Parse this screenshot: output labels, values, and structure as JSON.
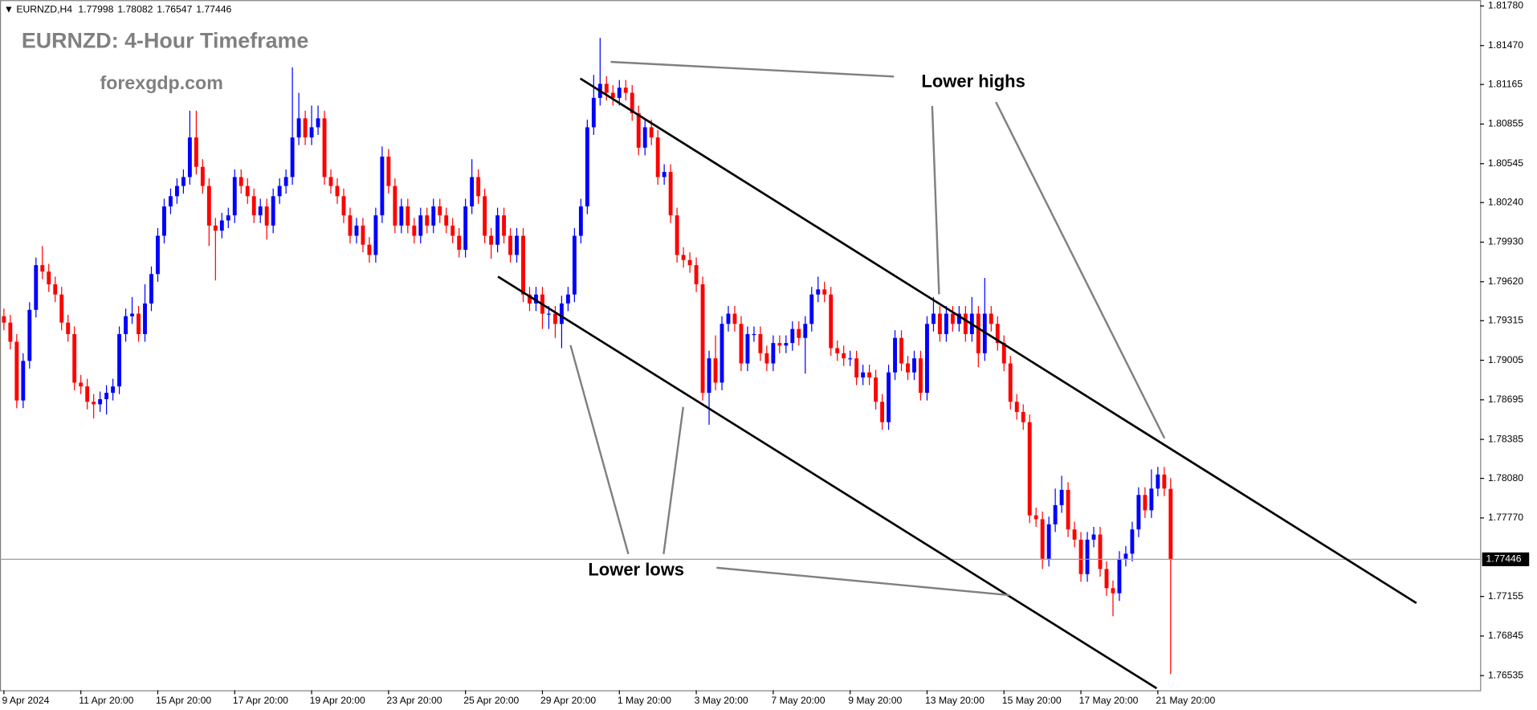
{
  "chart_data": {
    "type": "candlestick",
    "symbol": "EURNZD,H4",
    "title": "EURNZD: 4-Hour Timeframe",
    "subtitle": "forexgdp.com",
    "annotations": [
      "Lower highs",
      "Lower lows"
    ],
    "categories": [
      "9 Apr 2024",
      null,
      null,
      null,
      null,
      null,
      null,
      null,
      null,
      null,
      null,
      null,
      "11 Apr 20:00",
      null,
      null,
      null,
      null,
      null,
      null,
      null,
      null,
      null,
      null,
      null,
      "15 Apr 20:00",
      null,
      null,
      null,
      null,
      null,
      null,
      null,
      null,
      null,
      null,
      null,
      "17 Apr 20:00",
      null,
      null,
      null,
      null,
      null,
      null,
      null,
      null,
      null,
      null,
      null,
      "19 Apr 20:00",
      null,
      null,
      null,
      null,
      null,
      null,
      null,
      null,
      null,
      null,
      null,
      "23 Apr 20:00",
      null,
      null,
      null,
      null,
      null,
      null,
      null,
      null,
      null,
      null,
      null,
      "25 Apr 20:00",
      null,
      null,
      null,
      null,
      null,
      null,
      null,
      null,
      null,
      null,
      null,
      "29 Apr 20:00",
      null,
      null,
      null,
      null,
      null,
      null,
      null,
      null,
      null,
      null,
      null,
      "1 May 20:00",
      null,
      null,
      null,
      null,
      null,
      null,
      null,
      null,
      null,
      null,
      null,
      "3 May 20:00",
      null,
      null,
      null,
      null,
      null,
      null,
      null,
      null,
      null,
      null,
      null,
      "7 May 20:00",
      null,
      null,
      null,
      null,
      null,
      null,
      null,
      null,
      null,
      null,
      null,
      "9 May 20:00",
      null,
      null,
      null,
      null,
      null,
      null,
      null,
      null,
      null,
      null,
      null,
      "13 May 20:00",
      null,
      null,
      null,
      null,
      null,
      null,
      null,
      null,
      null,
      null,
      null,
      "15 May 20:00",
      null,
      null,
      null,
      null,
      null,
      null,
      null,
      null,
      null,
      null,
      null,
      "17 May 20:00",
      null,
      null,
      null,
      null,
      null,
      null,
      null,
      null,
      null,
      null,
      null,
      "21 May 20:00",
      null,
      null
    ],
    "open": [
      1.7935,
      1.793,
      1.7915,
      1.7869,
      1.79,
      1.794,
      1.7975,
      1.797,
      1.796,
      1.7952,
      1.793,
      1.7921,
      1.7883,
      1.788,
      1.7868,
      1.7866,
      1.787,
      1.7875,
      1.788,
      1.7921,
      1.7935,
      1.7937,
      1.7921,
      1.7945,
      1.7968,
      1.7998,
      1.8021,
      1.8029,
      1.8037,
      1.8044,
      1.8075,
      1.8052,
      1.8037,
      1.8006,
      1.8002,
      1.801,
      1.8014,
      1.8044,
      1.8037,
      1.8029,
      1.8014,
      1.8021,
      1.8006,
      1.8029,
      1.8037,
      1.8044,
      1.8075,
      1.809,
      1.8075,
      1.8083,
      1.809,
      1.8044,
      1.8037,
      1.8029,
      1.8014,
      1.7998,
      1.8006,
      1.7991,
      1.7983,
      1.8014,
      1.806,
      1.8037,
      1.8006,
      1.8021,
      1.8006,
      1.7998,
      1.8014,
      1.8006,
      1.8021,
      1.8014,
      1.8006,
      1.7998,
      1.7987,
      1.8021,
      1.8044,
      1.8029,
      1.7998,
      1.7991,
      1.8014,
      1.7998,
      1.7983,
      1.7998,
      1.7952,
      1.7945,
      1.7952,
      1.7937,
      1.7937,
      1.7929,
      1.7945,
      1.7952,
      1.7998,
      1.8021,
      1.8083,
      1.8106,
      1.8117,
      1.811,
      1.8106,
      1.8114,
      1.811,
      1.8094,
      1.8067,
      1.8083,
      1.8075,
      1.8044,
      1.8048,
      1.8014,
      1.7983,
      1.7979,
      1.7975,
      1.796,
      1.7875,
      1.7902,
      1.7883,
      1.7929,
      1.7937,
      1.7929,
      1.7898,
      1.7921,
      1.7921,
      1.7906,
      1.7898,
      1.7914,
      1.7912,
      1.7914,
      1.7925,
      1.7918,
      1.7929,
      1.7952,
      1.7956,
      1.7952,
      1.791,
      1.7906,
      1.7902,
      1.7902,
      1.7887,
      1.7891,
      1.7887,
      1.7868,
      1.7852,
      1.7891,
      1.7918,
      1.7898,
      1.7891,
      1.7902,
      1.7875,
      1.7929,
      1.7937,
      1.7921,
      1.7937,
      1.7929,
      1.7937,
      1.7921,
      1.7937,
      1.7906,
      1.7937,
      1.7929,
      1.7914,
      1.7898,
      1.7868,
      1.786,
      1.7852,
      1.7779,
      1.7776,
      1.7745,
      1.7772,
      1.7787,
      1.7799,
      1.7768,
      1.776,
      1.7733,
      1.776,
      1.7764,
      1.7737,
      1.7722,
      1.7718,
      1.7745,
      1.7749,
      1.7768,
      1.7795,
      1.7783,
      1.78,
      1.7811,
      1.77998
    ],
    "high": [
      1.7941,
      1.7936,
      1.7921,
      1.7906,
      1.7946,
      1.7981,
      1.799,
      1.7976,
      1.7966,
      1.7958,
      1.7936,
      1.7927,
      1.7889,
      1.7886,
      1.7874,
      1.7876,
      1.7881,
      1.7886,
      1.7927,
      1.7941,
      1.795,
      1.7943,
      1.796,
      1.7974,
      1.8004,
      1.8027,
      1.8035,
      1.8043,
      1.805,
      1.8096,
      1.8096,
      1.8058,
      1.8043,
      1.8012,
      1.8016,
      1.802,
      1.805,
      1.805,
      1.8043,
      1.8035,
      1.8027,
      1.8027,
      1.8035,
      1.8043,
      1.805,
      1.813,
      1.811,
      1.8096,
      1.81,
      1.81,
      1.8096,
      1.805,
      1.8043,
      1.8035,
      1.802,
      1.8012,
      1.8012,
      1.7997,
      1.802,
      1.8068,
      1.8066,
      1.8043,
      1.8027,
      1.8027,
      1.8012,
      1.802,
      1.802,
      1.8027,
      1.8027,
      1.802,
      1.8012,
      1.8004,
      1.8027,
      1.8058,
      1.805,
      1.8035,
      1.8004,
      1.802,
      1.802,
      1.8004,
      1.8004,
      1.8004,
      1.7958,
      1.7958,
      1.7958,
      1.7943,
      1.7943,
      1.7951,
      1.7958,
      1.8004,
      1.8027,
      1.8089,
      1.8124,
      1.8153,
      1.8123,
      1.8116,
      1.812,
      1.812,
      1.8116,
      1.81,
      1.8089,
      1.8089,
      1.8081,
      1.8054,
      1.8054,
      1.802,
      1.7989,
      1.7985,
      1.7981,
      1.7966,
      1.7908,
      1.792,
      1.7935,
      1.7943,
      1.7943,
      1.7935,
      1.7927,
      1.7927,
      1.7927,
      1.7912,
      1.792,
      1.792,
      1.792,
      1.7931,
      1.7931,
      1.7935,
      1.7958,
      1.7966,
      1.7962,
      1.7958,
      1.7916,
      1.7912,
      1.7908,
      1.7908,
      1.7897,
      1.7897,
      1.7893,
      1.7874,
      1.7897,
      1.7924,
      1.7924,
      1.7904,
      1.7908,
      1.7908,
      1.7935,
      1.795,
      1.7943,
      1.7943,
      1.7943,
      1.7943,
      1.7943,
      1.795,
      1.7943,
      1.7965,
      1.7943,
      1.7935,
      1.792,
      1.7904,
      1.7874,
      1.7866,
      1.7858,
      1.7785,
      1.7782,
      1.7778,
      1.78,
      1.781,
      1.7805,
      1.7774,
      1.7766,
      1.7766,
      1.777,
      1.777,
      1.7743,
      1.7728,
      1.7751,
      1.7755,
      1.7774,
      1.7801,
      1.7801,
      1.7815,
      1.7817,
      1.7817,
      1.78082
    ],
    "low": [
      1.7924,
      1.7909,
      1.7863,
      1.7863,
      1.7894,
      1.7934,
      1.7964,
      1.7954,
      1.7946,
      1.7924,
      1.7915,
      1.7877,
      1.7874,
      1.7862,
      1.7855,
      1.786,
      1.7858,
      1.7869,
      1.7874,
      1.7915,
      1.7929,
      1.7915,
      1.7915,
      1.7939,
      1.7962,
      1.7992,
      1.8015,
      1.8023,
      1.8031,
      1.8038,
      1.8046,
      1.8031,
      1.799,
      1.7963,
      1.7996,
      1.8004,
      1.8008,
      1.8031,
      1.8023,
      1.8008,
      1.8008,
      1.7995,
      1.8,
      1.8023,
      1.8031,
      1.8038,
      1.8069,
      1.8069,
      1.8069,
      1.8077,
      1.8038,
      1.8031,
      1.8023,
      1.8008,
      1.7992,
      1.7992,
      1.7985,
      1.7977,
      1.7977,
      1.8008,
      1.8031,
      1.8,
      1.8,
      1.8,
      1.7992,
      1.7992,
      1.8,
      1.8,
      1.8008,
      1.8,
      1.7992,
      1.7981,
      1.7981,
      1.8015,
      1.8023,
      1.7992,
      1.798,
      1.7985,
      1.7992,
      1.7977,
      1.7977,
      1.7946,
      1.7939,
      1.7939,
      1.7925,
      1.7925,
      1.7918,
      1.791,
      1.7939,
      1.7946,
      1.7992,
      1.8015,
      1.8077,
      1.81,
      1.8104,
      1.81,
      1.81,
      1.8104,
      1.8088,
      1.8061,
      1.8061,
      1.8069,
      1.8038,
      1.8038,
      1.8008,
      1.7977,
      1.7973,
      1.7969,
      1.7954,
      1.7869,
      1.785,
      1.7877,
      1.7877,
      1.7923,
      1.7923,
      1.7892,
      1.7892,
      1.7915,
      1.79,
      1.7892,
      1.7892,
      1.7906,
      1.7906,
      1.7908,
      1.7912,
      1.789,
      1.7923,
      1.7946,
      1.7946,
      1.7904,
      1.79,
      1.7896,
      1.7896,
      1.7881,
      1.7881,
      1.7881,
      1.7862,
      1.7846,
      1.7846,
      1.7885,
      1.7892,
      1.7885,
      1.7885,
      1.7869,
      1.7869,
      1.7923,
      1.7915,
      1.7915,
      1.7923,
      1.7923,
      1.7915,
      1.7915,
      1.7895,
      1.79,
      1.7923,
      1.7908,
      1.7892,
      1.7862,
      1.7854,
      1.7846,
      1.7773,
      1.777,
      1.7737,
      1.7739,
      1.7766,
      1.7781,
      1.7762,
      1.7754,
      1.7727,
      1.7727,
      1.7754,
      1.7731,
      1.7716,
      1.77,
      1.7712,
      1.7739,
      1.7743,
      1.7762,
      1.7777,
      1.7777,
      1.7794,
      1.7794,
      1.76547
    ],
    "close": [
      1.793,
      1.7915,
      1.7869,
      1.79,
      1.794,
      1.7975,
      1.797,
      1.796,
      1.7952,
      1.793,
      1.7921,
      1.7883,
      1.788,
      1.7868,
      1.7866,
      1.787,
      1.7875,
      1.788,
      1.7921,
      1.7935,
      1.7937,
      1.7921,
      1.7945,
      1.7968,
      1.7998,
      1.8021,
      1.8029,
      1.8037,
      1.8044,
      1.8075,
      1.8052,
      1.8037,
      1.8006,
      1.8002,
      1.801,
      1.8014,
      1.8044,
      1.8037,
      1.8029,
      1.8014,
      1.8021,
      1.8006,
      1.8029,
      1.8037,
      1.8044,
      1.8075,
      1.809,
      1.8075,
      1.8083,
      1.809,
      1.8044,
      1.8037,
      1.8029,
      1.8014,
      1.7998,
      1.8006,
      1.7991,
      1.7983,
      1.8014,
      1.806,
      1.8037,
      1.8006,
      1.8021,
      1.8006,
      1.7998,
      1.8014,
      1.8006,
      1.8021,
      1.8014,
      1.8006,
      1.7998,
      1.7987,
      1.8021,
      1.8044,
      1.8029,
      1.7998,
      1.7991,
      1.8014,
      1.7998,
      1.7983,
      1.7998,
      1.7952,
      1.7945,
      1.7952,
      1.7937,
      1.7937,
      1.7929,
      1.7945,
      1.7952,
      1.7998,
      1.8021,
      1.8083,
      1.8106,
      1.8117,
      1.811,
      1.8106,
      1.8114,
      1.811,
      1.8094,
      1.8067,
      1.8083,
      1.8075,
      1.8044,
      1.8048,
      1.8014,
      1.7983,
      1.7979,
      1.7975,
      1.796,
      1.7875,
      1.7902,
      1.7883,
      1.7929,
      1.7937,
      1.7929,
      1.7898,
      1.7921,
      1.7921,
      1.7906,
      1.7898,
      1.7914,
      1.7912,
      1.7914,
      1.7925,
      1.7918,
      1.7929,
      1.7952,
      1.7956,
      1.7952,
      1.791,
      1.7906,
      1.7902,
      1.7902,
      1.7887,
      1.7891,
      1.7887,
      1.7868,
      1.7852,
      1.7891,
      1.7918,
      1.7898,
      1.7891,
      1.7902,
      1.7875,
      1.7929,
      1.7937,
      1.7921,
      1.7937,
      1.7929,
      1.7937,
      1.7921,
      1.7937,
      1.7906,
      1.7937,
      1.7929,
      1.7914,
      1.7898,
      1.7868,
      1.786,
      1.7852,
      1.7779,
      1.7776,
      1.7745,
      1.7772,
      1.7787,
      1.7799,
      1.7768,
      1.776,
      1.7733,
      1.776,
      1.7764,
      1.7737,
      1.7722,
      1.7718,
      1.7745,
      1.7749,
      1.7768,
      1.7795,
      1.7783,
      1.78,
      1.7811,
      1.78,
      1.77446
    ],
    "up_color": "#0000ff",
    "down_color": "#ff0000",
    "ylim": [
      1.7642,
      1.81826
    ],
    "yticks": [
      {
        "value": 1.8178,
        "label": "1.81780"
      },
      {
        "value": 1.8147,
        "label": "1.81470"
      },
      {
        "value": 1.81165,
        "label": "1.81165"
      },
      {
        "value": 1.80855,
        "label": "1.80855"
      },
      {
        "value": 1.80545,
        "label": "1.80545"
      },
      {
        "value": 1.8024,
        "label": "1.80240"
      },
      {
        "value": 1.7993,
        "label": "1.79930"
      },
      {
        "value": 1.7962,
        "label": "1.79620"
      },
      {
        "value": 1.79315,
        "label": "1.79315"
      },
      {
        "value": 1.79005,
        "label": "1.79005"
      },
      {
        "value": 1.78695,
        "label": "1.78695"
      },
      {
        "value": 1.78385,
        "label": "1.78385"
      },
      {
        "value": 1.7808,
        "label": "1.78080"
      },
      {
        "value": 1.7777,
        "label": "1.77770"
      },
      {
        "value": 1.77155,
        "label": "1.77155"
      },
      {
        "value": 1.76845,
        "label": "1.76845"
      },
      {
        "value": 1.76535,
        "label": "1.76535"
      }
    ],
    "grid": false
  }
}
